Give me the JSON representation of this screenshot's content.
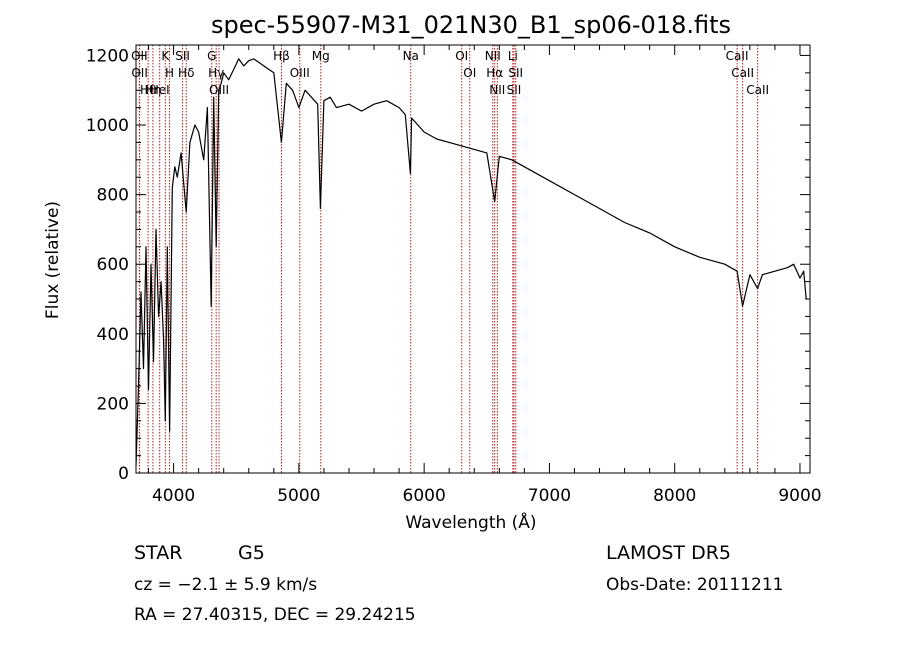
{
  "chart_data": {
    "type": "line",
    "title": "spec-55907-M31_021N30_B1_sp06-018.fits",
    "xlabel": "Wavelength (Å)",
    "ylabel": "Flux (relative)",
    "xlim": [
      3700,
      9080
    ],
    "ylim": [
      0,
      1230
    ],
    "xticks": [
      4000,
      5000,
      6000,
      7000,
      8000,
      9000
    ],
    "yticks": [
      0,
      200,
      400,
      600,
      800,
      1000,
      1200
    ],
    "grid": false,
    "series": [
      {
        "x": [
          3700,
          3720,
          3740,
          3760,
          3780,
          3800,
          3820,
          3840,
          3860,
          3880,
          3900,
          3920,
          3934,
          3950,
          3968,
          3990,
          4010,
          4030,
          4060,
          4101,
          4130,
          4170,
          4200,
          4240,
          4270,
          4300,
          4320,
          4340,
          4360,
          4380,
          4400,
          4440,
          4480,
          4520,
          4560,
          4600,
          4640,
          4680,
          4720,
          4760,
          4800,
          4861,
          4900,
          4950,
          5000,
          5050,
          5100,
          5150,
          5172,
          5200,
          5250,
          5300,
          5400,
          5500,
          5600,
          5700,
          5800,
          5850,
          5890,
          5900,
          5950,
          6000,
          6100,
          6200,
          6300,
          6400,
          6500,
          6563,
          6600,
          6700,
          6800,
          7000,
          7200,
          7400,
          7600,
          7800,
          8000,
          8200,
          8400,
          8498,
          8542,
          8600,
          8662,
          8700,
          8800,
          8900,
          8950,
          9000,
          9030,
          9050
        ],
        "y": [
          20,
          250,
          520,
          300,
          650,
          240,
          600,
          320,
          700,
          450,
          550,
          380,
          150,
          650,
          120,
          820,
          880,
          850,
          920,
          750,
          950,
          1000,
          980,
          900,
          1050,
          480,
          1080,
          650,
          1100,
          1120,
          1150,
          1130,
          1160,
          1190,
          1170,
          1185,
          1190,
          1180,
          1170,
          1160,
          1150,
          950,
          1120,
          1100,
          1050,
          1100,
          1080,
          1060,
          760,
          1070,
          1080,
          1050,
          1060,
          1040,
          1060,
          1070,
          1050,
          1030,
          860,
          1020,
          1000,
          980,
          960,
          950,
          940,
          930,
          920,
          780,
          910,
          900,
          880,
          840,
          800,
          760,
          720,
          690,
          650,
          620,
          600,
          580,
          480,
          570,
          530,
          570,
          580,
          590,
          600,
          560,
          580,
          500
        ]
      }
    ],
    "lines": [
      {
        "name": "Hθ",
        "x": 3797
      },
      {
        "name": "OII",
        "x": 3727
      },
      {
        "name": "OII",
        "x": 3729
      },
      {
        "name": "K",
        "x": 3934
      },
      {
        "name": "H",
        "x": 3968
      },
      {
        "name": "HeI",
        "x": 3889
      },
      {
        "name": "Hη",
        "x": 3835
      },
      {
        "name": "Hδ",
        "x": 4101
      },
      {
        "name": "SII",
        "x": 4072
      },
      {
        "name": "OIII",
        "x": 4363
      },
      {
        "name": "Hγ",
        "x": 4340
      },
      {
        "name": "G",
        "x": 4305
      },
      {
        "name": "Hβ",
        "x": 4861
      },
      {
        "name": "OIII",
        "x": 5007
      },
      {
        "name": "Mg",
        "x": 5175
      },
      {
        "name": "Na",
        "x": 5893
      },
      {
        "name": "OI",
        "x": 6300
      },
      {
        "name": "OI",
        "x": 6364
      },
      {
        "name": "Hα",
        "x": 6563
      },
      {
        "name": "NII",
        "x": 6548
      },
      {
        "name": "NII",
        "x": 6584
      },
      {
        "name": "SII",
        "x": 6717
      },
      {
        "name": "SII",
        "x": 6731
      },
      {
        "name": "Li",
        "x": 6708
      },
      {
        "name": "CaII",
        "x": 8498
      },
      {
        "name": "CaII",
        "x": 8542
      },
      {
        "name": "CaII",
        "x": 8662
      }
    ]
  },
  "info": {
    "class_label": "STAR",
    "subclass": "G5",
    "survey": "LAMOST DR5",
    "cz": "cz = −2.1 ± 5.9 km/s",
    "obs_date": "Obs-Date: 20111211",
    "radec": "RA =  27.40315, DEC =  29.24215"
  },
  "colors": {
    "line_marker": "#b22222",
    "spectrum": "#000000",
    "frame": "#000000"
  }
}
